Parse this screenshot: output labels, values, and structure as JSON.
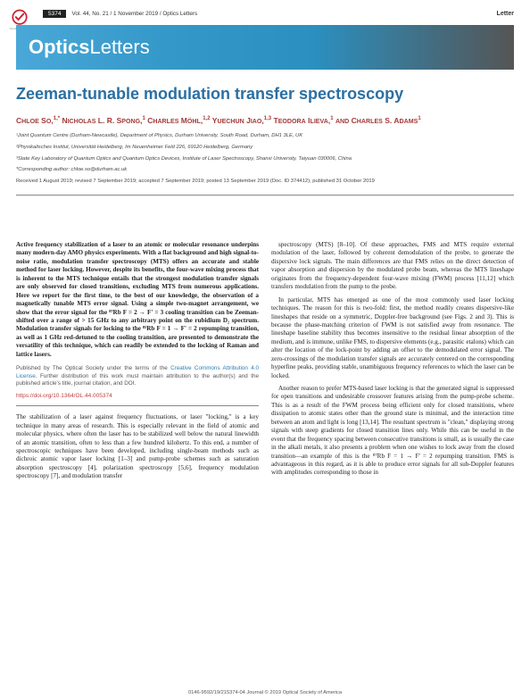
{
  "page_number": "5374",
  "header_meta": "Vol. 44, No. 21 / 1 November 2019 / Optics Letters",
  "header_label": "Letter",
  "journal_bold": "Optics",
  "journal_light": "Letters",
  "title": "Zeeman-tunable modulation transfer spectroscopy",
  "authors_html": "Chloe So,<sup>1,*</sup> Nicholas L. R. Spong,<sup>1</sup> Charles Möhl,<sup>1,2</sup> Yuechun Jiao,<sup>1,3</sup> Teodora Ilieva,<sup>1</sup> and Charles S. Adams<sup>1</sup>",
  "affiliations": [
    "¹Joint Quantum Centre (Durham-Newcastle), Department of Physics, Durham University, South Road, Durham, DH1 3LE, UK",
    "²Physikalisches Institut, Universität Heidelberg, Im Neuenheimer Feld 226, 69120 Heidelberg, Germany",
    "³State Key Laboratory of Quantum Optics and Quantum Optics Devices, Institute of Laser Spectroscopy, Shanxi University, Taiyuan 030006, China",
    "*Corresponding author: chloe.so@durham.ac.uk"
  ],
  "dates": "Received 1 August 2019; revised 7 September 2019; accepted 7 September 2019; posted 13 September 2019 (Doc. ID 374412); published 31 October 2019",
  "abstract": "Active frequency stabilization of a laser to an atomic or molecular resonance underpins many modern-day AMO physics experiments. With a flat background and high signal-to-noise ratio, modulation transfer spectroscopy (MTS) offers an accurate and stable method for laser locking. However, despite its benefits, the four-wave mixing process that is inherent to the MTS technique entails that the strongest modulation transfer signals are only observed for closed transitions, excluding MTS from numerous applications. Here we report for the first time, to the best of our knowledge, the observation of a magnetically tunable MTS error signal. Using a simple two-magnet arrangement, we show that the error signal for the ⁸⁷Rb F = 2 → F' = 3 cooling transition can be Zeeman-shifted over a range of > 15 GHz to any arbitrary point on the rubidium D₂ spectrum. Modulation transfer signals for locking to the ⁸⁵Rb F = 1 → F' = 2 repumping transition, as well as 1 GHz red-detuned to the cooling transition, are presented to demonstrate the versatility of this technique, which can readily be extended to the locking of Raman and lattice lasers.",
  "pubnote_prefix": "Published by The Optical Society under the terms of the ",
  "pubnote_link": "Creative Commons Attribution 4.0 License",
  "pubnote_suffix": ". Further distribution of this work must maintain attribution to the author(s) and the published article's title, journal citation, and DOI.",
  "doi": "https://doi.org/10.1364/OL.44.005374",
  "body": [
    "The stabilization of a laser against frequency fluctuations, or laser \"locking,\" is a key technique in many areas of research. This is especially relevant in the field of atomic and molecular physics, where often the laser has to be stabilized well below the natural linewidth of an atomic transition, often to less than a few hundred kilohertz. To this end, a number of spectroscopic techniques have been developed, including single-beam methods such as dichroic atomic vapor laser locking [1–3] and pump-probe schemes such as saturation absorption spectroscopy [4], polarization spectroscopy [5,6], frequency modulation spectroscopy [7], and modulation transfer",
    "spectroscopy (MTS) [8–10]. Of these approaches, FMS and MTS require external modulation of the laser, followed by coherent demodulation of the probe, to generate the dispersive lock signals. The main differences are that FMS relies on the direct detection of vapor absorption and dispersion by the modulated probe beam, whereas the MTS lineshape originates from the frequency-dependent four-wave mixing (FWM) process [11,12] which transfers modulation from the pump to the probe.",
    "In particular, MTS has emerged as one of the most commonly used laser locking techniques. The reason for this is two-fold: first, the method readily creates dispersive-like lineshapes that reside on a symmetric, Doppler-free background (see Figs. 2 and 3). This is because the phase-matching criterion of FWM is not satisfied away from resonance. The lineshape baseline stability thus becomes insensitive to the residual linear absorption of the medium, and is immune, unlike FMS, to dispersive elements (e.g., parasitic etalons) which can alter the location of the lock-point by adding an offset to the demodulated error signal. The zero-crossings of the modulation transfer signals are accurately centered on the corresponding hyperfine peaks, providing stable, unambiguous frequency references to which the laser can be locked.",
    "Another reason to prefer MTS-based laser locking is that the generated signal is suppressed for open transitions and undesirable crossover features arising from the pump-probe scheme. This is as a result of the FWM process being efficient only for closed transitions, where dissipation to atomic states other than the ground state is minimal, and the interaction time between an atom and light is long [13,14]. The resultant spectrum is \"clean,\" displaying strong signals with steep gradients for closed transition lines only. While this can be useful in the event that the frequency spacing between consecutive transitions is small, as is usually the case in the alkali metals, it also presents a problem when one wishes to lock away from the closed transition—an example of this is the ⁸⁷Rb F = 1 → F' = 2 repumping transition. FMS is advantageous in this regard, as it is able to produce error signals for all sub-Doppler features with amplitudes corresponding to those in"
  ],
  "footer": "0146-9592/19/215374-04 Journal © 2019 Optical Society of America",
  "colors": {
    "banner_start": "#4aa8d8",
    "banner_end": "#555555",
    "title_color": "#2b6fa3",
    "author_color": "#a33a3a",
    "link_color": "#2b7fb3",
    "doi_color": "#c04040"
  }
}
